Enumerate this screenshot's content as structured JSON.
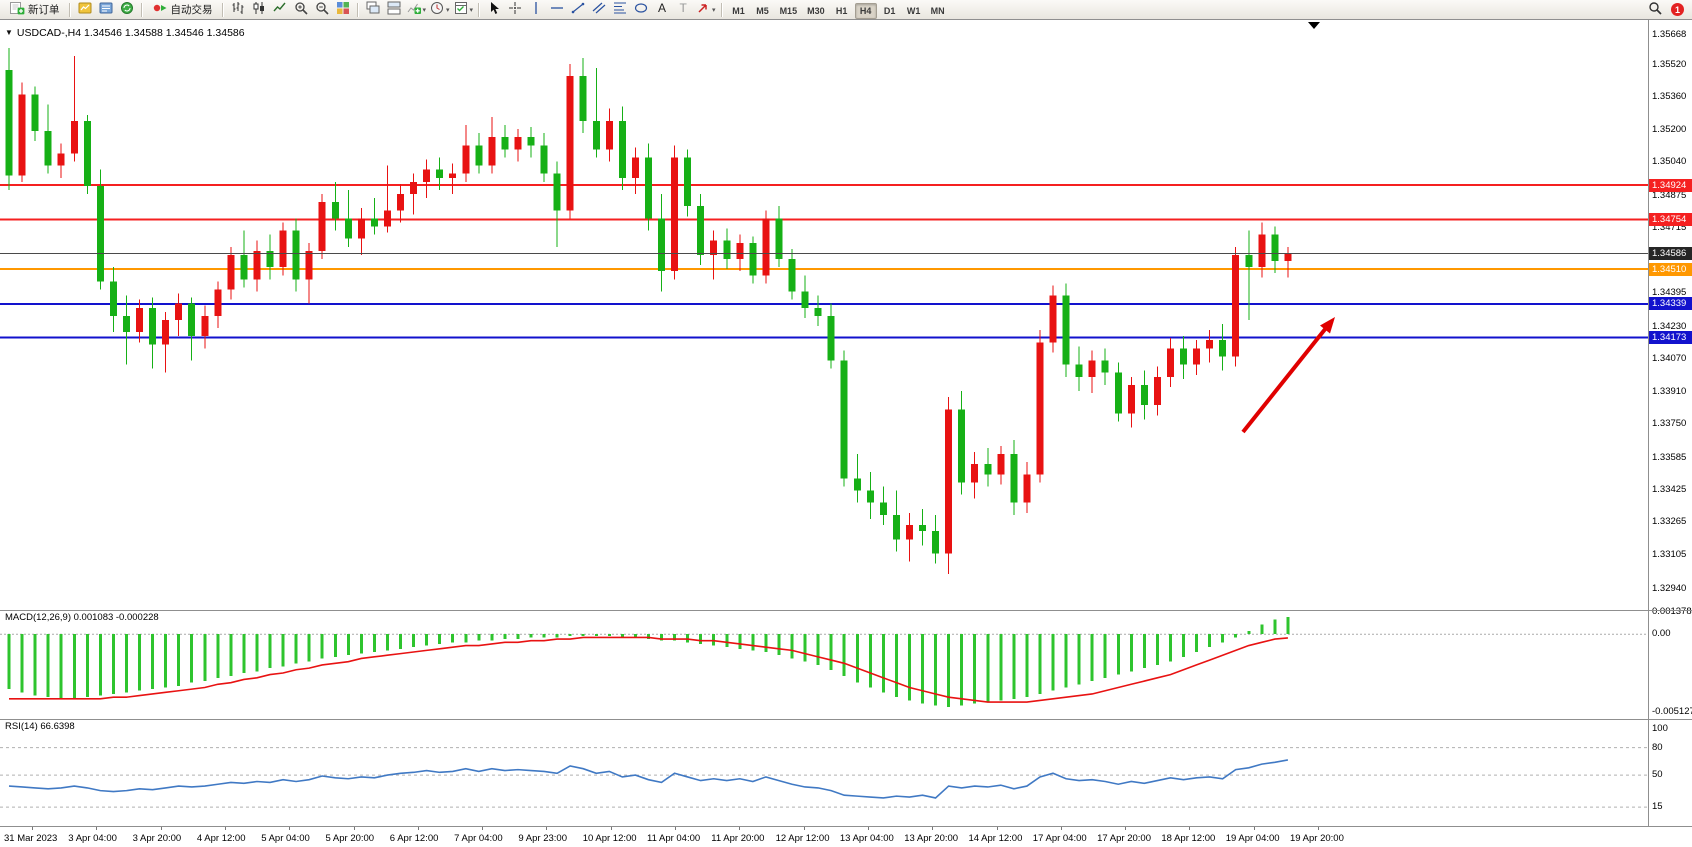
{
  "toolbar": {
    "new_order": "新订单",
    "auto_trading": "自动交易",
    "timeframes": [
      "M1",
      "M5",
      "M15",
      "M30",
      "H1",
      "H4",
      "D1",
      "W1",
      "MN"
    ],
    "active_timeframe": "H4",
    "notification_count": "1"
  },
  "chart": {
    "title": "USDCAD-,H4 1.34546 1.34588 1.34546 1.34586",
    "symbol": "USDCAD-",
    "timeframe": "H4",
    "open": "1.34546",
    "high": "1.34588",
    "low": "1.34546",
    "close": "1.34586"
  },
  "price_axis": {
    "ticks": [
      "1.35668",
      "1.35520",
      "1.35360",
      "1.35200",
      "1.35040",
      "1.34875",
      "1.34715",
      "1.34395",
      "1.34230",
      "1.34070",
      "1.33910",
      "1.33750",
      "1.33585",
      "1.33425",
      "1.33265",
      "1.33105",
      "1.32940"
    ],
    "badges": [
      {
        "label": "1.34924",
        "price": 1.34924,
        "bg": "#f52020",
        "fg": "#ffffff"
      },
      {
        "label": "1.34754",
        "price": 1.34754,
        "bg": "#f52020",
        "fg": "#ffffff"
      },
      {
        "label": "1.34586",
        "price": 1.34586,
        "bg": "#262626",
        "fg": "#ffffff"
      },
      {
        "label": "1.34510",
        "price": 1.3451,
        "bg": "#ff9800",
        "fg": "#ffffff"
      },
      {
        "label": "1.34339",
        "price": 1.34339,
        "bg": "#1212cd",
        "fg": "#ffffff"
      },
      {
        "label": "1.34173",
        "price": 1.34173,
        "bg": "#1212cd",
        "fg": "#ffffff"
      }
    ]
  },
  "macd": {
    "label": "MACD(12,26,9) 0.001083 -0.000228",
    "value": "0.001083",
    "signal_value": "-0.000228",
    "axis": {
      "max": "0.001378",
      "zero": "0.00",
      "min": "-0.005127"
    }
  },
  "rsi": {
    "label": "RSI(14) 66.6398",
    "value": "66.6398",
    "levels": [
      100,
      80,
      50,
      15
    ]
  },
  "time_axis": {
    "labels": [
      "31 Mar 2023",
      "3 Apr 04:00",
      "3 Apr 20:00",
      "4 Apr 12:00",
      "5 Apr 04:00",
      "5 Apr 20:00",
      "6 Apr 12:00",
      "7 Apr 04:00",
      "9 Apr 23:00",
      "10 Apr 12:00",
      "11 Apr 04:00",
      "11 Apr 20:00",
      "12 Apr 12:00",
      "13 Apr 04:00",
      "13 Apr 20:00",
      "14 Apr 12:00",
      "17 Apr 04:00",
      "17 Apr 20:00",
      "18 Apr 12:00",
      "19 Apr 04:00",
      "19 Apr 20:00"
    ]
  },
  "colors": {
    "bull": "#e81212",
    "bear": "#16b016",
    "macd_hist": "#2ec42e",
    "macd_signal": "#e81212",
    "rsi_line": "#4079c4",
    "line_red": "#f52020",
    "line_orange": "#ff9800",
    "line_blue": "#1212cd",
    "current_line": "#4a4a4a",
    "arrow": "#e00000"
  },
  "chart_data": {
    "type": "candlestick",
    "symbol": "USDCAD-",
    "timeframe": "H4",
    "price_range": [
      1.3294,
      1.35668
    ],
    "current_price": 1.34586,
    "horizontal_lines": [
      {
        "price": 1.34924,
        "color": "#f52020",
        "width": 2,
        "kind": "resistance"
      },
      {
        "price": 1.34754,
        "color": "#f52020",
        "width": 2,
        "kind": "resistance"
      },
      {
        "price": 1.3451,
        "color": "#ff9800",
        "width": 2,
        "kind": "pivot"
      },
      {
        "price": 1.34339,
        "color": "#1212cd",
        "width": 2,
        "kind": "support"
      },
      {
        "price": 1.34173,
        "color": "#1212cd",
        "width": 2,
        "kind": "support"
      }
    ],
    "annotations": [
      {
        "type": "arrow",
        "direction": "up-right",
        "color": "#e00000"
      }
    ],
    "candles": [
      [
        1.3549,
        1.356,
        1.349,
        1.3497
      ],
      [
        1.3497,
        1.3543,
        1.3494,
        1.3537
      ],
      [
        1.3537,
        1.3541,
        1.3514,
        1.3519
      ],
      [
        1.3519,
        1.3532,
        1.3498,
        1.3502
      ],
      [
        1.3502,
        1.3513,
        1.3496,
        1.3508
      ],
      [
        1.3508,
        1.3556,
        1.3504,
        1.3524
      ],
      [
        1.3524,
        1.3527,
        1.3488,
        1.3492
      ],
      [
        1.3492,
        1.35,
        1.3441,
        1.3445
      ],
      [
        1.3445,
        1.3452,
        1.342,
        1.3428
      ],
      [
        1.3428,
        1.3438,
        1.3404,
        1.342
      ],
      [
        1.342,
        1.3436,
        1.3415,
        1.3432
      ],
      [
        1.3432,
        1.3437,
        1.3402,
        1.3414
      ],
      [
        1.3414,
        1.343,
        1.34,
        1.3426
      ],
      [
        1.3426,
        1.3439,
        1.3418,
        1.3434
      ],
      [
        1.3434,
        1.3437,
        1.3406,
        1.3418
      ],
      [
        1.3418,
        1.3433,
        1.3412,
        1.3428
      ],
      [
        1.3428,
        1.3445,
        1.3422,
        1.3441
      ],
      [
        1.3441,
        1.3462,
        1.3436,
        1.3458
      ],
      [
        1.3458,
        1.347,
        1.3442,
        1.3446
      ],
      [
        1.3446,
        1.3465,
        1.344,
        1.346
      ],
      [
        1.346,
        1.3468,
        1.3446,
        1.3452
      ],
      [
        1.3452,
        1.3474,
        1.3448,
        1.347
      ],
      [
        1.347,
        1.3476,
        1.344,
        1.3446
      ],
      [
        1.3446,
        1.3464,
        1.3434,
        1.346
      ],
      [
        1.346,
        1.3488,
        1.3456,
        1.3484
      ],
      [
        1.3484,
        1.3494,
        1.347,
        1.3476
      ],
      [
        1.3476,
        1.349,
        1.3462,
        1.3466
      ],
      [
        1.3466,
        1.3481,
        1.3458,
        1.3476
      ],
      [
        1.3476,
        1.3486,
        1.3468,
        1.3472
      ],
      [
        1.3472,
        1.3502,
        1.3469,
        1.348
      ],
      [
        1.348,
        1.3493,
        1.3474,
        1.3488
      ],
      [
        1.3488,
        1.3498,
        1.3478,
        1.3494
      ],
      [
        1.3494,
        1.3505,
        1.3486,
        1.35
      ],
      [
        1.35,
        1.3506,
        1.349,
        1.3496
      ],
      [
        1.3496,
        1.3503,
        1.3488,
        1.3498
      ],
      [
        1.3498,
        1.3522,
        1.3494,
        1.3512
      ],
      [
        1.3512,
        1.3518,
        1.3498,
        1.3502
      ],
      [
        1.3502,
        1.3526,
        1.3498,
        1.3516
      ],
      [
        1.3516,
        1.3522,
        1.3506,
        1.351
      ],
      [
        1.351,
        1.352,
        1.3504,
        1.3516
      ],
      [
        1.3516,
        1.3521,
        1.3506,
        1.3512
      ],
      [
        1.3512,
        1.3518,
        1.3494,
        1.3498
      ],
      [
        1.3498,
        1.3504,
        1.3462,
        1.348
      ],
      [
        1.348,
        1.3552,
        1.3476,
        1.3546
      ],
      [
        1.3546,
        1.3555,
        1.3518,
        1.3524
      ],
      [
        1.3524,
        1.355,
        1.3506,
        1.351
      ],
      [
        1.351,
        1.353,
        1.3504,
        1.3524
      ],
      [
        1.3524,
        1.3531,
        1.349,
        1.3496
      ],
      [
        1.3496,
        1.3511,
        1.3488,
        1.3506
      ],
      [
        1.3506,
        1.3513,
        1.347,
        1.3476
      ],
      [
        1.3476,
        1.3488,
        1.344,
        1.345
      ],
      [
        1.345,
        1.3512,
        1.3446,
        1.3506
      ],
      [
        1.3506,
        1.351,
        1.3477,
        1.3482
      ],
      [
        1.3482,
        1.3488,
        1.3453,
        1.3458
      ],
      [
        1.3458,
        1.347,
        1.3446,
        1.3465
      ],
      [
        1.3465,
        1.3471,
        1.3451,
        1.3456
      ],
      [
        1.3456,
        1.3468,
        1.345,
        1.3464
      ],
      [
        1.3464,
        1.3467,
        1.3444,
        1.3448
      ],
      [
        1.3448,
        1.348,
        1.3444,
        1.3476
      ],
      [
        1.3476,
        1.3482,
        1.3452,
        1.3456
      ],
      [
        1.3456,
        1.3461,
        1.3436,
        1.344
      ],
      [
        1.344,
        1.3448,
        1.3427,
        1.3432
      ],
      [
        1.3432,
        1.3438,
        1.3423,
        1.3428
      ],
      [
        1.3428,
        1.3434,
        1.3402,
        1.3406
      ],
      [
        1.3406,
        1.3411,
        1.3344,
        1.3348
      ],
      [
        1.3348,
        1.336,
        1.3336,
        1.3342
      ],
      [
        1.3342,
        1.3351,
        1.3328,
        1.3336
      ],
      [
        1.3336,
        1.3344,
        1.3325,
        1.333
      ],
      [
        1.333,
        1.3342,
        1.3312,
        1.3318
      ],
      [
        1.3318,
        1.3331,
        1.3307,
        1.3325
      ],
      [
        1.3325,
        1.3333,
        1.3315,
        1.3322
      ],
      [
        1.3322,
        1.333,
        1.3306,
        1.3311
      ],
      [
        1.3311,
        1.3388,
        1.3301,
        1.3382
      ],
      [
        1.3382,
        1.3391,
        1.334,
        1.3346
      ],
      [
        1.3346,
        1.3361,
        1.3338,
        1.3355
      ],
      [
        1.3355,
        1.3363,
        1.3344,
        1.335
      ],
      [
        1.335,
        1.3364,
        1.3345,
        1.336
      ],
      [
        1.336,
        1.3367,
        1.333,
        1.3336
      ],
      [
        1.3336,
        1.3356,
        1.3331,
        1.335
      ],
      [
        1.335,
        1.3421,
        1.3346,
        1.3415
      ],
      [
        1.3415,
        1.3443,
        1.341,
        1.3438
      ],
      [
        1.3438,
        1.3444,
        1.3398,
        1.3404
      ],
      [
        1.3404,
        1.3413,
        1.3391,
        1.3398
      ],
      [
        1.3398,
        1.3411,
        1.339,
        1.3406
      ],
      [
        1.3406,
        1.3412,
        1.3394,
        1.34
      ],
      [
        1.34,
        1.3405,
        1.3376,
        1.338
      ],
      [
        1.338,
        1.3398,
        1.3373,
        1.3394
      ],
      [
        1.3394,
        1.3401,
        1.3377,
        1.3384
      ],
      [
        1.3384,
        1.3403,
        1.3379,
        1.3398
      ],
      [
        1.3398,
        1.3417,
        1.3393,
        1.3412
      ],
      [
        1.3412,
        1.3418,
        1.3397,
        1.3404
      ],
      [
        1.3404,
        1.3416,
        1.3399,
        1.3412
      ],
      [
        1.3412,
        1.3421,
        1.3405,
        1.3416
      ],
      [
        1.3416,
        1.3424,
        1.3401,
        1.3408
      ],
      [
        1.3408,
        1.3462,
        1.3403,
        1.3458
      ],
      [
        1.3458,
        1.347,
        1.3426,
        1.3452
      ],
      [
        1.3452,
        1.3474,
        1.3447,
        1.3468
      ],
      [
        1.3468,
        1.3472,
        1.3449,
        1.3455
      ],
      [
        1.3455,
        1.3462,
        1.3447,
        1.34586
      ]
    ],
    "indicators": {
      "macd_histogram": [
        -0.0034,
        -0.0036,
        -0.0038,
        -0.0039,
        -0.004,
        -0.004,
        -0.0039,
        -0.0038,
        -0.0037,
        -0.0036,
        -0.0035,
        -0.0034,
        -0.0033,
        -0.0032,
        -0.003,
        -0.0029,
        -0.0027,
        -0.0026,
        -0.0024,
        -0.0023,
        -0.0021,
        -0.002,
        -0.0018,
        -0.0017,
        -0.0015,
        -0.0014,
        -0.0013,
        -0.0012,
        -0.0011,
        -0.001,
        -0.0009,
        -0.0008,
        -0.0007,
        -0.0006,
        -0.0005,
        -0.0005,
        -0.0004,
        -0.0004,
        -0.0003,
        -0.0003,
        -0.0002,
        -0.0002,
        -0.0002,
        -0.0001,
        -0.0001,
        -0.0001,
        -0.0001,
        -0.0002,
        -0.0002,
        -0.0003,
        -0.0004,
        -0.0004,
        -0.0005,
        -0.0006,
        -0.0007,
        -0.0008,
        -0.0009,
        -0.001,
        -0.0011,
        -0.0013,
        -0.0015,
        -0.0017,
        -0.0019,
        -0.0022,
        -0.0026,
        -0.003,
        -0.0033,
        -0.0036,
        -0.0039,
        -0.0041,
        -0.0043,
        -0.0044,
        -0.0045,
        -0.0044,
        -0.0043,
        -0.0042,
        -0.0041,
        -0.004,
        -0.0039,
        -0.0037,
        -0.0035,
        -0.0033,
        -0.0031,
        -0.0029,
        -0.0027,
        -0.0025,
        -0.0023,
        -0.0021,
        -0.0019,
        -0.0017,
        -0.0014,
        -0.0011,
        -0.0008,
        -0.0005,
        -0.0002,
        0.0002,
        0.0006,
        0.0009,
        0.001083
      ],
      "macd_signal": [
        -0.004,
        -0.004,
        -0.004,
        -0.004,
        -0.004,
        -0.004,
        -0.004,
        -0.004,
        -0.0039,
        -0.0039,
        -0.0038,
        -0.0037,
        -0.0036,
        -0.0035,
        -0.0034,
        -0.0033,
        -0.0031,
        -0.003,
        -0.0028,
        -0.0027,
        -0.0025,
        -0.0024,
        -0.0022,
        -0.0021,
        -0.0019,
        -0.0018,
        -0.0017,
        -0.0015,
        -0.0014,
        -0.0013,
        -0.0012,
        -0.0011,
        -0.001,
        -0.0009,
        -0.0008,
        -0.0007,
        -0.0007,
        -0.0006,
        -0.0005,
        -0.0005,
        -0.0004,
        -0.0004,
        -0.0003,
        -0.0003,
        -0.0002,
        -0.0002,
        -0.0002,
        -0.0002,
        -0.0002,
        -0.0002,
        -0.0003,
        -0.0003,
        -0.0003,
        -0.0004,
        -0.0004,
        -0.0005,
        -0.0006,
        -0.0007,
        -0.0008,
        -0.0009,
        -0.001,
        -0.0012,
        -0.0014,
        -0.0016,
        -0.0018,
        -0.0021,
        -0.0024,
        -0.0027,
        -0.003,
        -0.0033,
        -0.0035,
        -0.0037,
        -0.0039,
        -0.004,
        -0.0041,
        -0.0042,
        -0.0042,
        -0.0042,
        -0.0042,
        -0.0041,
        -0.004,
        -0.0039,
        -0.0038,
        -0.0037,
        -0.0035,
        -0.0033,
        -0.0031,
        -0.0029,
        -0.0027,
        -0.0025,
        -0.0022,
        -0.0019,
        -0.0016,
        -0.0013,
        -0.001,
        -0.0007,
        -0.0005,
        -0.0003,
        -0.000228
      ],
      "rsi": [
        38,
        37,
        36,
        35,
        36,
        38,
        36,
        33,
        32,
        33,
        35,
        34,
        36,
        38,
        37,
        38,
        40,
        42,
        41,
        43,
        42,
        45,
        43,
        45,
        49,
        47,
        46,
        48,
        47,
        50,
        52,
        53,
        55,
        53,
        54,
        57,
        54,
        57,
        55,
        56,
        55,
        54,
        52,
        60,
        57,
        52,
        54,
        48,
        50,
        45,
        42,
        52,
        48,
        44,
        46,
        44,
        46,
        43,
        48,
        44,
        40,
        37,
        36,
        33,
        28,
        27,
        26,
        25,
        27,
        26,
        28,
        25,
        38,
        36,
        38,
        37,
        39,
        35,
        38,
        48,
        52,
        46,
        44,
        45,
        43,
        40,
        43,
        41,
        44,
        47,
        45,
        47,
        48,
        46,
        56,
        58,
        62,
        64,
        66.6
      ]
    }
  }
}
